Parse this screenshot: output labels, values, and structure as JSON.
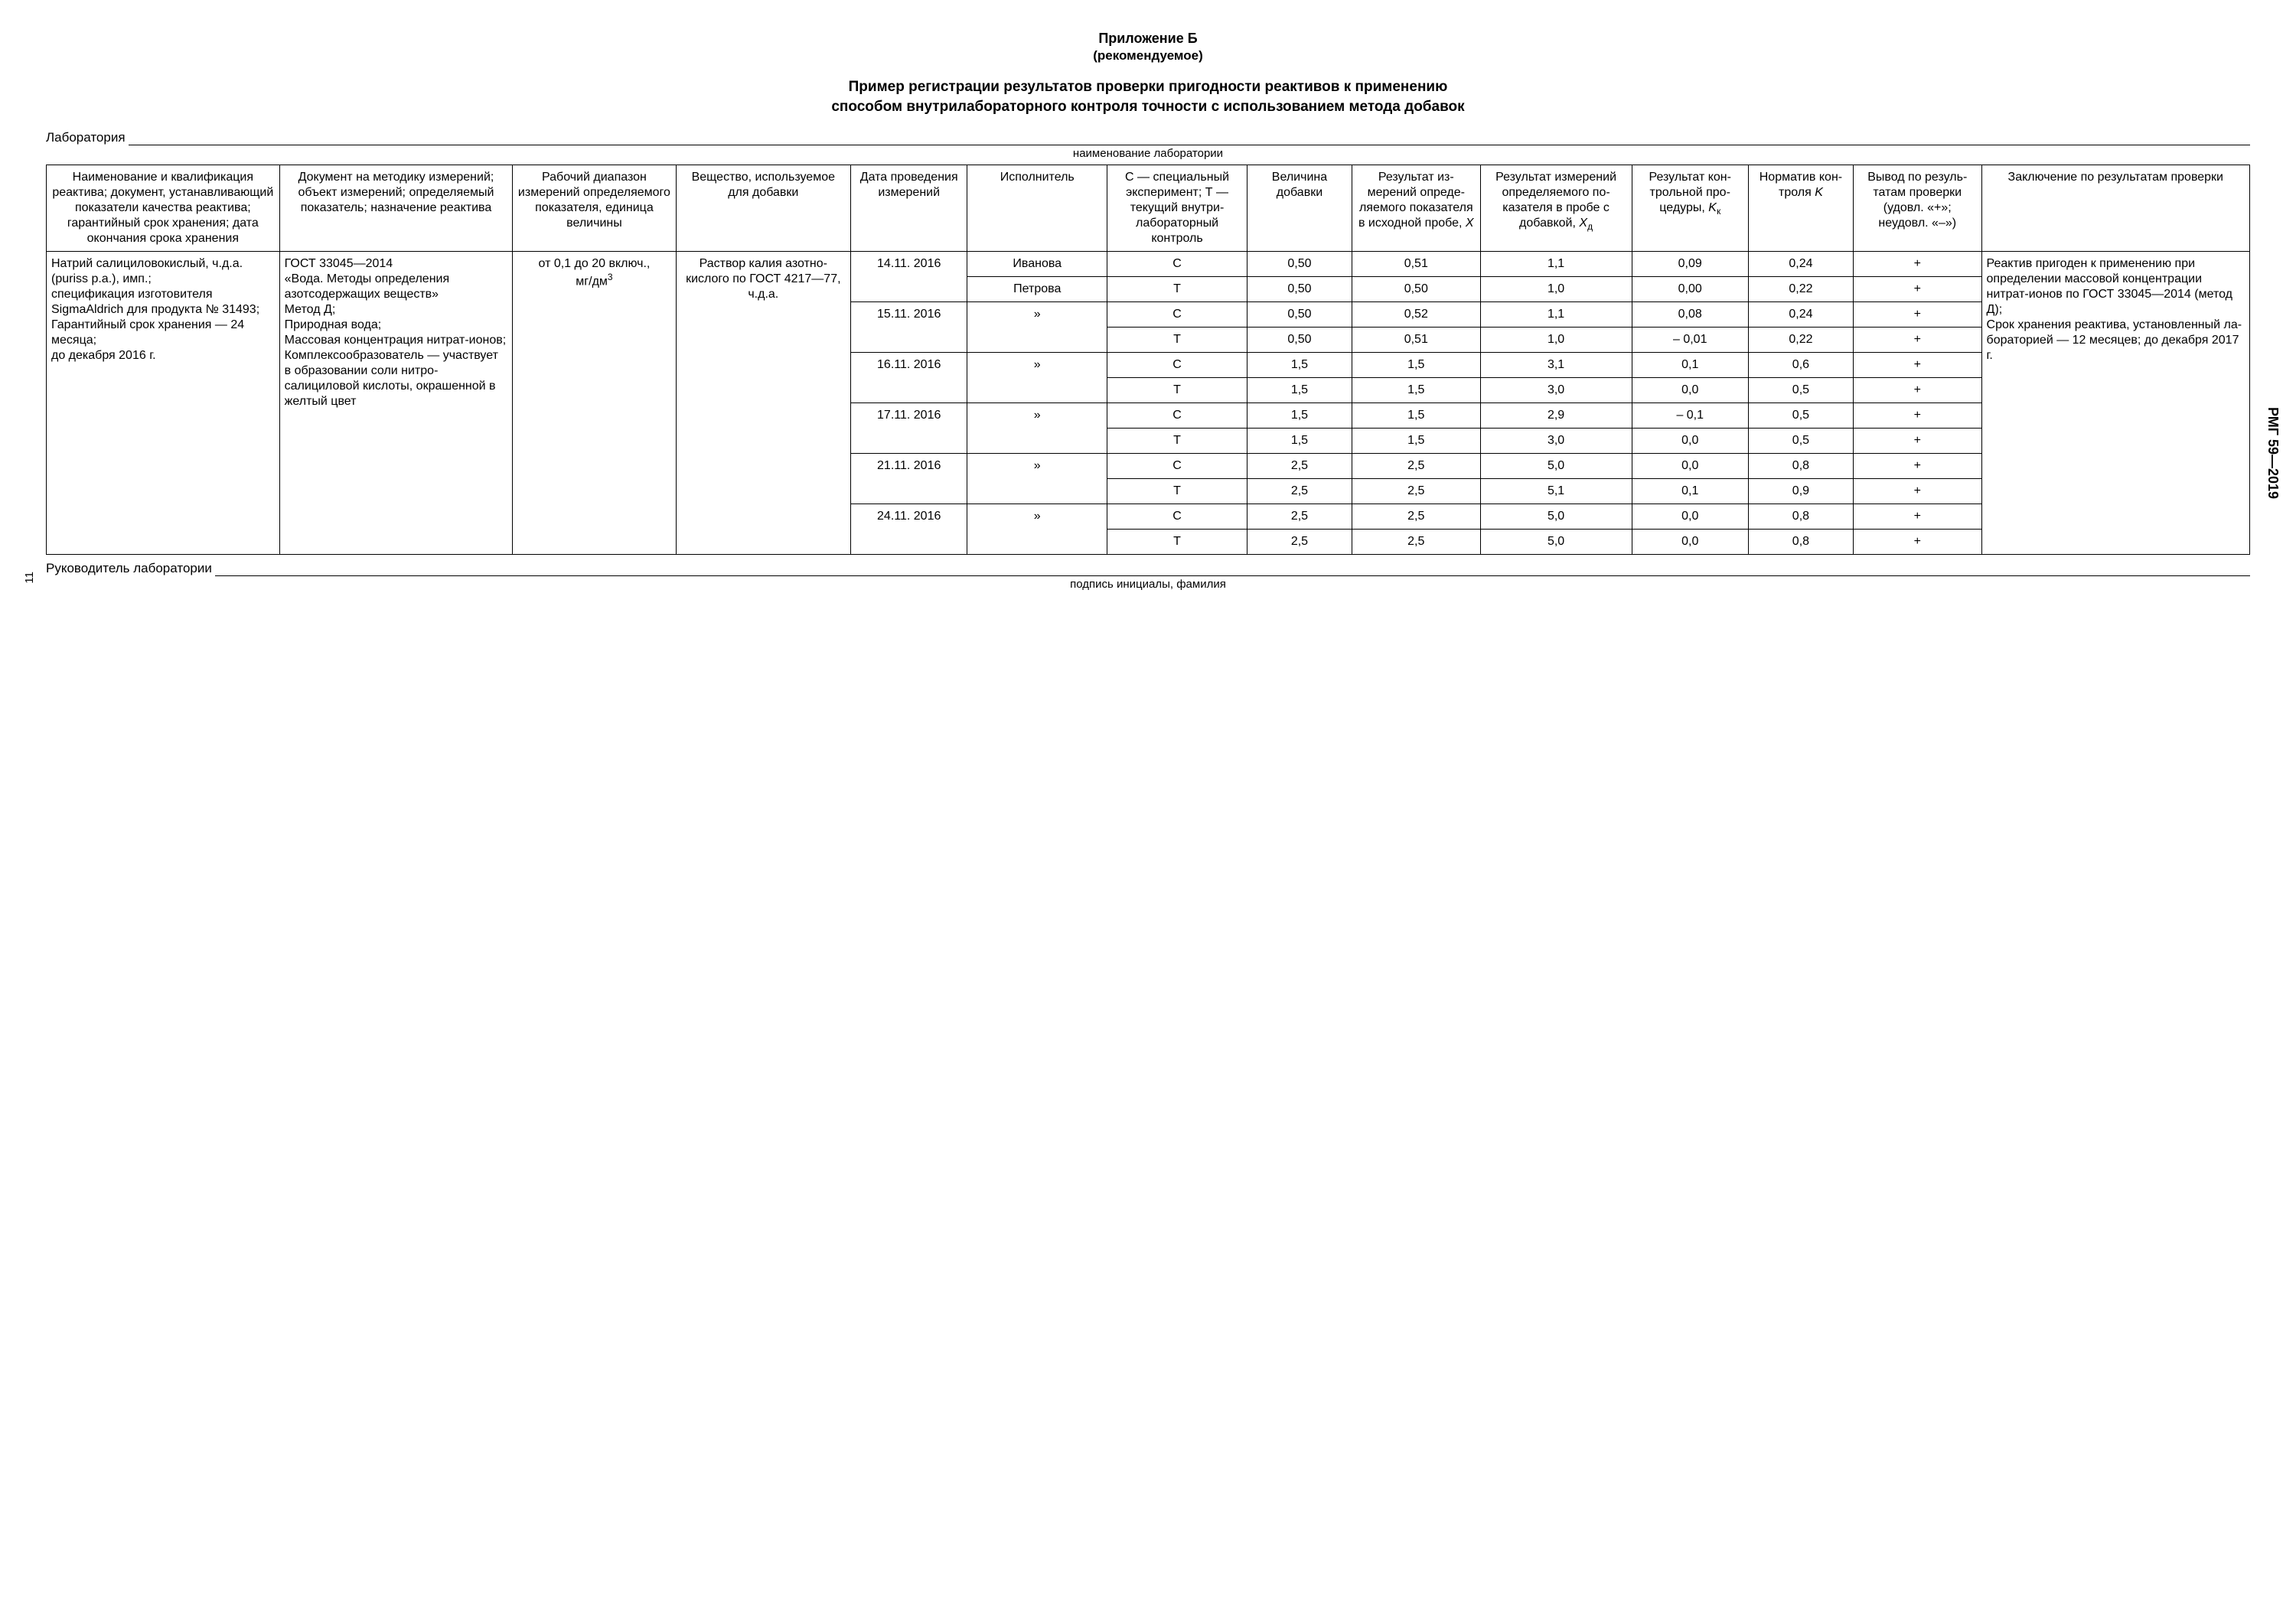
{
  "doc": {
    "appendix_label": "Приложение Б",
    "appendix_type": "(рекомендуемое)",
    "title_line1": "Пример регистрации результатов проверки пригодности реактивов к применению",
    "title_line2": "способом внутрилабораторного контроля точности с использованием метода добавок",
    "lab_label": "Лаборатория",
    "lab_sub": "наименование лаборатории",
    "sig_label": "Руководитель лаборатории",
    "sig_sub": "подпись инициалы, фамилия",
    "page": "11",
    "code": "РМГ 59—2019"
  },
  "cols": {
    "c1": "Наименование и квалифика­ция реактива; документ, устанавлива­ющий показа­тели качества реактива; гарантийный срок хранения; дата окончания срока хранения",
    "c2": "Документ на методику из­мерений; объект измерений; определяемый показатель; назначение реактива",
    "c3_pre": "Рабочий диапазон измерений опреде­ляемого показателя, единица величины",
    "c4": "Вещество, используемое для добавки",
    "c5": "Дата прове­дения измере­ний",
    "c6": "Исполни­тель",
    "c7": "С — специ­альный экспери­мент; Т — текущий внутри­лабора­торный контроль",
    "c8": "Вели­чина добав­ки",
    "c9_pre": "Резуль­тат из­мерений опреде­ляемого показа­теля в исход­ной про­бе, ",
    "c9_var": "X",
    "c10_pre": "Результат изме­рений определя­емого по­казателя в пробе с добавкой, ",
    "c10_var": "X",
    "c10_sub": "д",
    "c11_pre": "Ре­зуль­тат кон­троль­ной про­цеду­ры, ",
    "c11_var": "K",
    "c11_sub": "к",
    "c12_pre": "Нор­ма­тив кон­тро­ля ",
    "c12_var": "K",
    "c13": "Вы­вод по резуль­татам про­верки (удовл. «+»; неудовл. «–»)",
    "c14": "Заключение по результатам проверки"
  },
  "body": {
    "c1": "Натрий салицилово­кислый, ч.д.а. (puriss p.a.), имп.;\nспеци­фикация изготовителя SigmaAldrich для продукта № 31493;\nГарантийный срок хране­ния — 24 месяца;\nдо декабря 2016 г.",
    "c2": "ГОСТ 33045—2014\n«Вода. Методы определения азотсодержа­щих веществ»\nМетод Д;\nПриродная вода;\nМассовая концентрация нитрат-ионов;\nКомплексооб­разователь — участвует в образовании соли нитро­салициловой кислоты, окрашенной в желтый цвет",
    "c3_line1": "от 0,1 до 20 включ.,",
    "c3_unit_pre": "мг/дм",
    "c3_unit_sup": "3",
    "c4": "Раствор калия азотно­кислого по ГОСТ 4217—77, ч.д.а.",
    "c14": "Реактив при­годен к при­менению при определении массовой концентрации нитрат-ио­нов по ГОСТ 33045—2014 (метод Д);\nСрок хранения реактива, уста­новленный ла­бораторией — 12 месяцев; до декабря 2017 г."
  },
  "rows": [
    {
      "date": "14.11. 2016",
      "exec": "Иванова",
      "type": "С",
      "add": "0,50",
      "x": "0,51",
      "xd": "1,1",
      "kk": "0,09",
      "k": "0,24",
      "res": "+"
    },
    {
      "date": "",
      "exec": "Петрова",
      "type": "Т",
      "add": "0,50",
      "x": "0,50",
      "xd": "1,0",
      "kk": "0,00",
      "k": "0,22",
      "res": "+"
    },
    {
      "date": "15.11. 2016",
      "exec": "»",
      "type": "С",
      "add": "0,50",
      "x": "0,52",
      "xd": "1,1",
      "kk": "0,08",
      "k": "0,24",
      "res": "+"
    },
    {
      "date": "",
      "exec": "",
      "type": "Т",
      "add": "0,50",
      "x": "0,51",
      "xd": "1,0",
      "kk": "– 0,01",
      "k": "0,22",
      "res": "+"
    },
    {
      "date": "16.11. 2016",
      "exec": "»",
      "type": "С",
      "add": "1,5",
      "x": "1,5",
      "xd": "3,1",
      "kk": "0,1",
      "k": "0,6",
      "res": "+"
    },
    {
      "date": "",
      "exec": "",
      "type": "Т",
      "add": "1,5",
      "x": "1,5",
      "xd": "3,0",
      "kk": "0,0",
      "k": "0,5",
      "res": "+"
    },
    {
      "date": "17.11. 2016",
      "exec": "»",
      "type": "С",
      "add": "1,5",
      "x": "1,5",
      "xd": "2,9",
      "kk": "– 0,1",
      "k": "0,5",
      "res": "+"
    },
    {
      "date": "",
      "exec": "",
      "type": "Т",
      "add": "1,5",
      "x": "1,5",
      "xd": "3,0",
      "kk": "0,0",
      "k": "0,5",
      "res": "+"
    },
    {
      "date": "21.11. 2016",
      "exec": "»",
      "type": "С",
      "add": "2,5",
      "x": "2,5",
      "xd": "5,0",
      "kk": "0,0",
      "k": "0,8",
      "res": "+"
    },
    {
      "date": "",
      "exec": "",
      "type": "Т",
      "add": "2,5",
      "x": "2,5",
      "xd": "5,1",
      "kk": "0,1",
      "k": "0,9",
      "res": "+"
    },
    {
      "date": "24.11. 2016",
      "exec": "»",
      "type": "С",
      "add": "2,5",
      "x": "2,5",
      "xd": "5,0",
      "kk": "0,0",
      "k": "0,8",
      "res": "+"
    },
    {
      "date": "",
      "exec": "",
      "type": "Т",
      "add": "2,5",
      "x": "2,5",
      "xd": "5,0",
      "kk": "0,0",
      "k": "0,8",
      "res": "+"
    }
  ],
  "colwidths": [
    "10%",
    "10%",
    "7%",
    "7.5%",
    "5%",
    "6%",
    "6%",
    "4.5%",
    "5.5%",
    "6.5%",
    "5%",
    "4.5%",
    "5.5%",
    "11.5%"
  ]
}
